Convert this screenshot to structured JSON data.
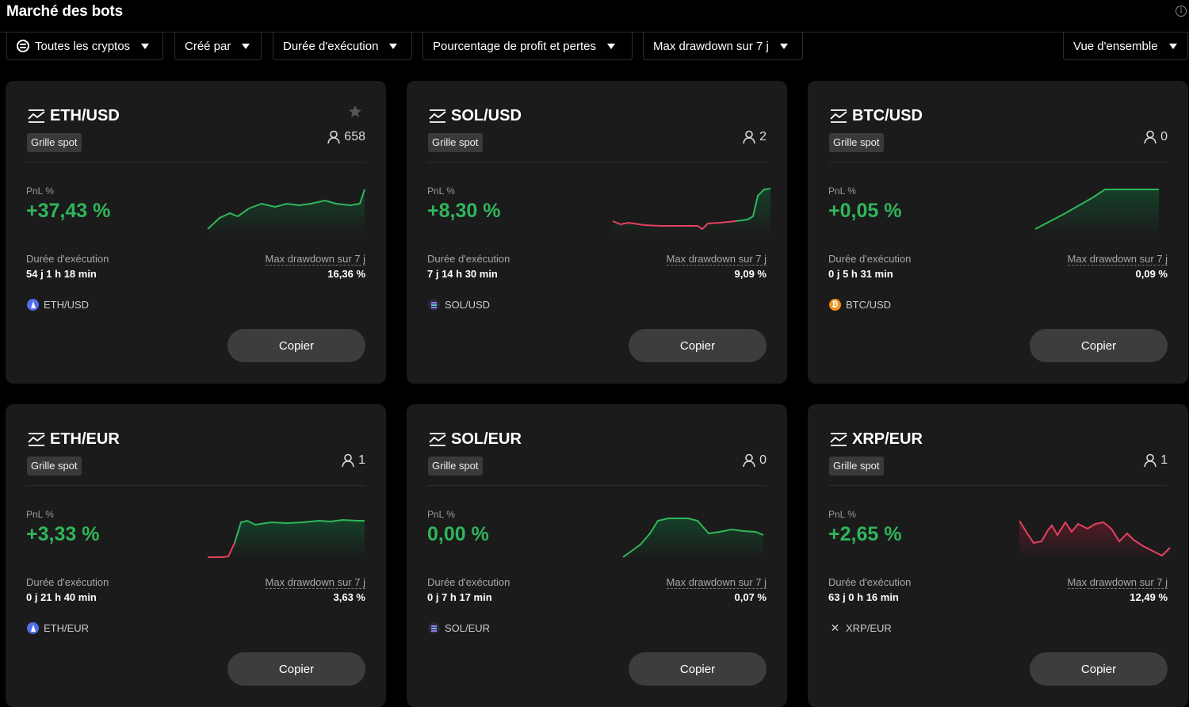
{
  "header": {
    "title": "Marché des bots"
  },
  "filters": [
    {
      "label": "Toutes les cryptos"
    },
    {
      "label": "Créé par"
    },
    {
      "label": "Durée d'exécution"
    },
    {
      "label": "Pourcentage de profit et pertes"
    },
    {
      "label": "Max drawdown sur 7 j"
    }
  ],
  "view_select": {
    "label": "Vue d'ensemble"
  },
  "labels": {
    "pnl": "PnL %",
    "duration": "Durée d'exécution",
    "max_drawdown": "Max drawdown sur 7 j",
    "copy": "Copier"
  },
  "colors": {
    "positive": "#2fb65b",
    "negative": "#e5415f",
    "neutral": "#2fb65b"
  },
  "bots": [
    {
      "pair": "ETH/USD",
      "type": "Grille spot",
      "users": "658",
      "pnl": "+37,43 %",
      "duration": "54 j 1 h 18 min",
      "drawdown": "16,36 %",
      "asset": "ETH/USD",
      "asset_icon": "ethereum-icon",
      "favorite": true
    },
    {
      "pair": "SOL/USD",
      "type": "Grille spot",
      "users": "2",
      "pnl": "+8,30 %",
      "duration": "7 j 14 h 30 min",
      "drawdown": "9,09 %",
      "asset": "SOL/USD",
      "asset_icon": "solana-icon",
      "favorite": false
    },
    {
      "pair": "BTC/USD",
      "type": "Grille spot",
      "users": "0",
      "pnl": "+0,05 %",
      "duration": "0 j 5 h 31 min",
      "drawdown": "0,09 %",
      "asset": "BTC/USD",
      "asset_icon": "bitcoin-icon",
      "favorite": false
    },
    {
      "pair": "ETH/EUR",
      "type": "Grille spot",
      "users": "1",
      "pnl": "+3,33 %",
      "duration": "0 j 21 h 40 min",
      "drawdown": "3,63 %",
      "asset": "ETH/EUR",
      "asset_icon": "ethereum-icon",
      "favorite": false
    },
    {
      "pair": "SOL/EUR",
      "type": "Grille spot",
      "users": "0",
      "pnl": "0,00 %",
      "duration": "0 j 7 h 17 min",
      "drawdown": "0,07 %",
      "asset": "SOL/EUR",
      "asset_icon": "solana-icon",
      "favorite": false
    },
    {
      "pair": "XRP/EUR",
      "type": "Grille spot",
      "users": "1",
      "pnl": "+2,65 %",
      "duration": "63 j 0 h 16 min",
      "drawdown": "12,49 %",
      "asset": "XRP/EUR",
      "asset_icon": "xrp-icon",
      "favorite": false
    }
  ]
}
